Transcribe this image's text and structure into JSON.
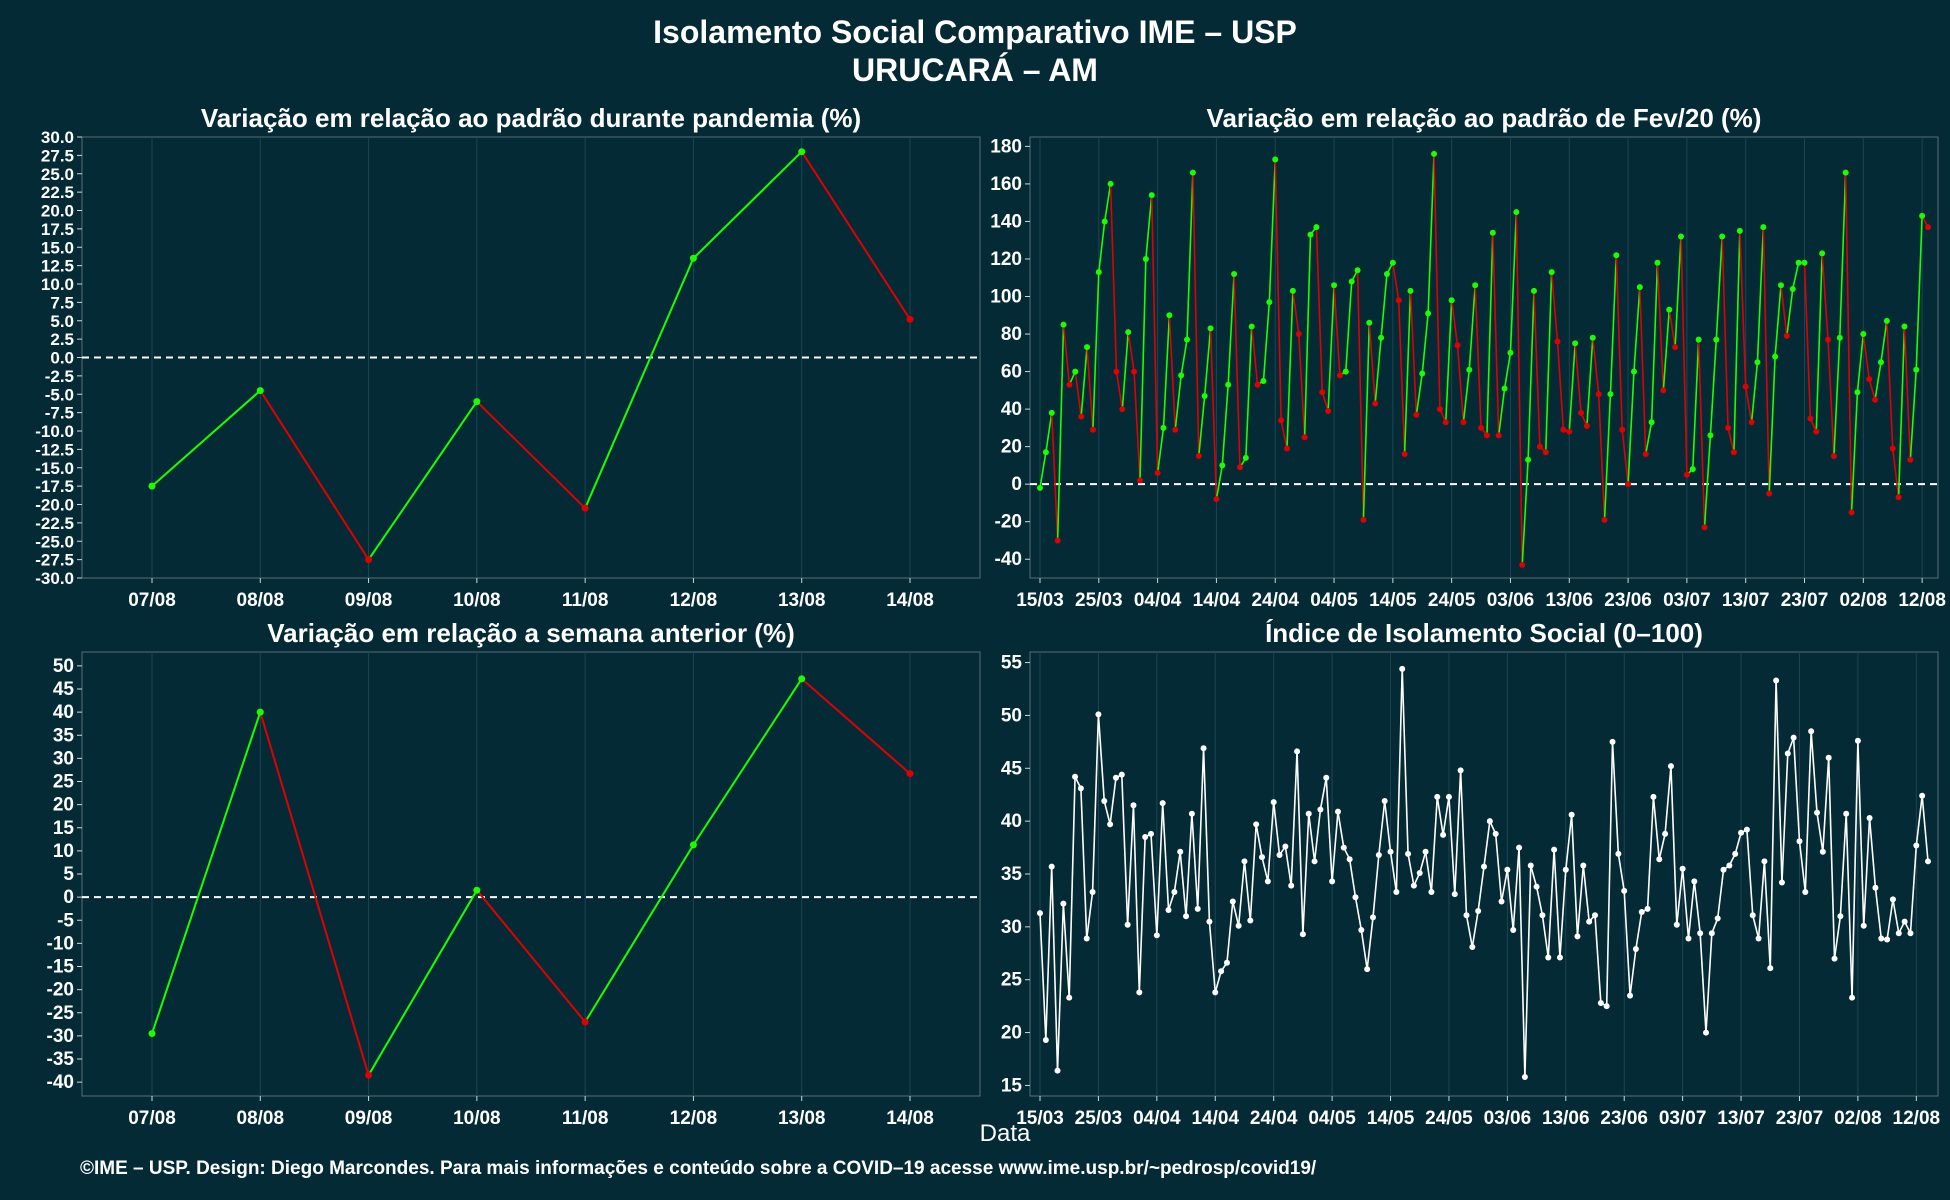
{
  "header": {
    "title": "Isolamento Social Comparativo IME – USP",
    "subtitle": "URUCARÁ – AM"
  },
  "x_axis_label": "Data",
  "footer": "©IME – USP. Design: Diego Marcondes. Para mais informações e conteúdo sobre a COVID–19 acesse www.ime.usp.br/~pedrosp/covid19/",
  "colors": {
    "background": "#042a36",
    "positive": "#1aff00",
    "negative": "#e00000",
    "index_line": "#ffffff"
  },
  "chart_data": [
    {
      "id": "pandemia",
      "type": "line",
      "title": "Variação em relação ao padrão durante pandemia (%)",
      "categories": [
        "07/08",
        "08/08",
        "09/08",
        "10/08",
        "11/08",
        "12/08",
        "13/08",
        "14/08"
      ],
      "values": [
        -17.5,
        -4.5,
        -27.5,
        -6,
        -20.5,
        13.5,
        28,
        5.2
      ],
      "ylim": [
        -30,
        30
      ],
      "yticks": [
        30,
        27.5,
        25,
        22.5,
        20,
        17.5,
        15,
        12.5,
        10,
        7.5,
        5,
        2.5,
        0,
        -2.5,
        -5,
        -7.5,
        -10,
        -12.5,
        -15,
        -17.5,
        -20,
        -22.5,
        -25,
        -27.5,
        -30
      ],
      "ytick_decimals": 1,
      "zero_line": true,
      "color_by_sign": true
    },
    {
      "id": "fev20",
      "type": "line",
      "title": "Variação em relação ao padrão de Fev/20 (%)",
      "x_labels": [
        "15/03",
        "25/03",
        "04/04",
        "14/04",
        "24/04",
        "04/05",
        "14/05",
        "24/05",
        "03/06",
        "13/06",
        "23/06",
        "03/07",
        "13/07",
        "23/07",
        "02/08",
        "12/08"
      ],
      "values": [
        -2,
        17,
        38,
        -30,
        85,
        53,
        60,
        36,
        73,
        29,
        113,
        140,
        160,
        60,
        40,
        81,
        60,
        2,
        120,
        154,
        6,
        30,
        90,
        29,
        58,
        77,
        166,
        15,
        47,
        83,
        -8,
        10,
        53,
        112,
        9,
        14,
        84,
        53,
        55,
        97,
        173,
        34,
        19,
        103,
        80,
        25,
        133,
        137,
        49,
        39,
        106,
        58,
        60,
        108,
        114,
        -19,
        86,
        43,
        78,
        112,
        118,
        98,
        16,
        103,
        37,
        59,
        91,
        176,
        40,
        33,
        98,
        74,
        33,
        61,
        106,
        30,
        26,
        134,
        26,
        51,
        70,
        145,
        -43,
        13,
        103,
        20,
        17,
        113,
        76,
        29,
        28,
        75,
        38,
        31,
        78,
        48,
        -19,
        48,
        122,
        29,
        0,
        60,
        105,
        16,
        33,
        118,
        50,
        93,
        73,
        132,
        5,
        8,
        77,
        -23,
        26,
        77,
        132,
        30,
        17,
        135,
        52,
        33,
        65,
        137,
        -5,
        68,
        106,
        79,
        104,
        118,
        118,
        35,
        28,
        123,
        77,
        15,
        78,
        166,
        -15,
        49,
        80,
        56,
        45,
        65,
        87,
        19,
        -7,
        84,
        13,
        61,
        143,
        137
      ],
      "ylim": [
        -50,
        185
      ],
      "yticks": [
        180,
        160,
        140,
        120,
        100,
        80,
        60,
        40,
        20,
        0,
        -20,
        -40
      ],
      "zero_line": true,
      "color_by_sign": true
    },
    {
      "id": "semana",
      "type": "line",
      "title": "Variação em relação a semana anterior (%)",
      "categories": [
        "07/08",
        "08/08",
        "09/08",
        "10/08",
        "11/08",
        "12/08",
        "13/08",
        "14/08"
      ],
      "values": [
        -29.5,
        40,
        -38.5,
        1.5,
        -27,
        11.3,
        47.2,
        26.7
      ],
      "ylim": [
        -43,
        53
      ],
      "yticks": [
        50,
        45,
        40,
        35,
        30,
        25,
        20,
        15,
        10,
        5,
        0,
        -5,
        -10,
        -15,
        -20,
        -25,
        -30,
        -35,
        -40
      ],
      "zero_line": true,
      "color_by_sign": true
    },
    {
      "id": "indice",
      "type": "line",
      "title": "Índice de Isolamento Social (0–100)",
      "x_labels": [
        "15/03",
        "25/03",
        "04/04",
        "14/04",
        "24/04",
        "04/05",
        "14/05",
        "24/05",
        "03/06",
        "13/06",
        "23/06",
        "03/07",
        "13/07",
        "23/07",
        "02/08",
        "12/08"
      ],
      "values": [
        31.3,
        19.3,
        35.7,
        16.4,
        32.2,
        23.3,
        44.2,
        43.1,
        28.9,
        33.3,
        50.1,
        41.9,
        39.7,
        44.1,
        44.4,
        30.2,
        41.5,
        23.8,
        38.5,
        38.8,
        29.2,
        41.7,
        31.6,
        33.3,
        37.1,
        31,
        40.7,
        31.7,
        46.9,
        30.5,
        23.8,
        25.8,
        26.6,
        32.4,
        30.1,
        36.2,
        30.6,
        39.7,
        36.6,
        34.3,
        41.8,
        36.8,
        37.6,
        33.9,
        46.6,
        29.3,
        40.7,
        36.2,
        41.1,
        44.1,
        34.3,
        40.9,
        37.5,
        36.4,
        32.8,
        29.7,
        26,
        30.9,
        36.8,
        41.9,
        37.1,
        33.3,
        54.4,
        36.9,
        33.9,
        35.1,
        37.1,
        33.3,
        42.3,
        38.7,
        42.3,
        33.1,
        44.8,
        31.1,
        28.1,
        31.5,
        35.7,
        40,
        38.8,
        32.4,
        35.4,
        29.7,
        37.5,
        15.8,
        35.8,
        33.8,
        31.1,
        27.1,
        37.3,
        27.1,
        35.4,
        40.6,
        29.1,
        35.8,
        30.5,
        31.1,
        22.8,
        22.5,
        47.5,
        36.9,
        33.4,
        23.5,
        27.9,
        31.4,
        31.7,
        42.3,
        36.4,
        38.8,
        45.2,
        30.2,
        35.5,
        28.9,
        34.3,
        29.4,
        20,
        29.4,
        30.8,
        35.4,
        35.8,
        36.9,
        38.9,
        39.2,
        31.1,
        28.9,
        36.2,
        26.1,
        53.3,
        34.2,
        46.4,
        47.9,
        38.1,
        33.3,
        48.5,
        40.8,
        37.1,
        46,
        27,
        31,
        40.7,
        23.3,
        47.6,
        30.1,
        40.3,
        33.7,
        28.9,
        28.8,
        32.6,
        29.4,
        30.5,
        29.4,
        37.7,
        42.4,
        36.2
      ],
      "ylim": [
        14,
        56
      ],
      "yticks": [
        55,
        50,
        45,
        40,
        35,
        30,
        25,
        20,
        15
      ],
      "zero_line": false,
      "color_by_sign": false
    }
  ]
}
